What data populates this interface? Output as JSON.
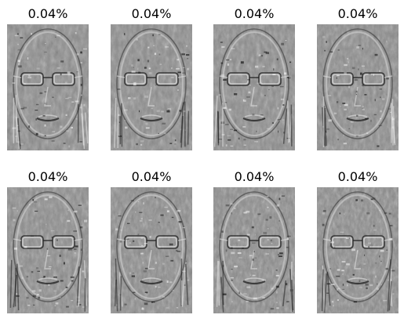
{
  "panels": [
    {
      "caption": "0.04%",
      "image": "eigenface-image"
    },
    {
      "caption": "0.04%",
      "image": "eigenface-image"
    },
    {
      "caption": "0.04%",
      "image": "eigenface-image"
    },
    {
      "caption": "0.04%",
      "image": "eigenface-image"
    },
    {
      "caption": "0.04%",
      "image": "eigenface-image"
    },
    {
      "caption": "0.04%",
      "image": "eigenface-image"
    },
    {
      "caption": "0.04%",
      "image": "eigenface-image"
    },
    {
      "caption": "0.04%",
      "image": "eigenface-image"
    }
  ]
}
